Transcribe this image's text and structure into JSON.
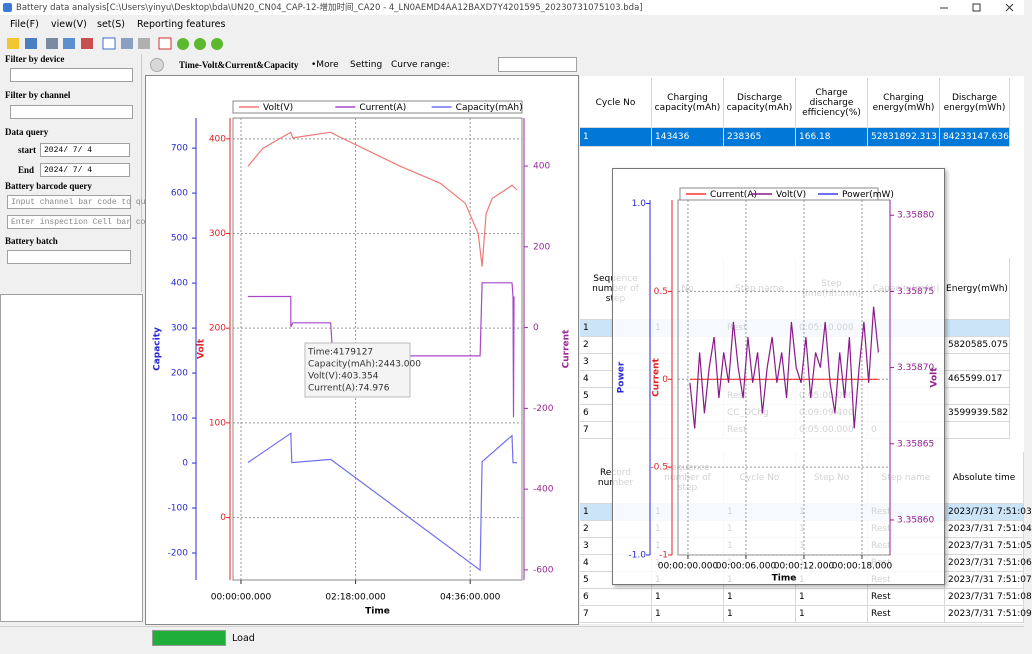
{
  "window": {
    "title": "Battery data analysis[C:\\Users\\yinyu\\Desktop\\bda\\UN20_CN04_CAP-12-增加时间_CA20 - 4_LN0AEMD4AA12BAXD7Y4201595_20230731075103.bda]"
  },
  "menu": [
    "File(F)",
    "view(V)",
    "set(S)",
    "Reporting features"
  ],
  "sidebar": {
    "device_label": "Filter by device",
    "channel_label": "Filter by channel",
    "query_label": "Data query",
    "start_label": "start",
    "start_date": "2024/ 7/ 4",
    "end_label": "End",
    "end_date": "2024/ 7/ 4",
    "barcode_label": "Battery barcode query",
    "channel_placeholder": "Input channel bar code to qu",
    "cell_placeholder": "Enter inspection Cell bar co",
    "batch_label": "Battery batch"
  },
  "chart_toolbar": {
    "view": "Time-Volt&Current&Capacity",
    "more": "•More",
    "setting": "Setting",
    "curve_range": "Curve range:"
  },
  "main_chart": {
    "type": "line",
    "x_label": "Time",
    "xlim": [
      -576,
      20304
    ],
    "xticks": [
      {
        "value": 0,
        "label": "00:00:00.000"
      },
      {
        "value": 8280,
        "label": "02:18:00.000"
      },
      {
        "value": 16560,
        "label": "04:36:00.000"
      }
    ],
    "grid": true,
    "grid_axis": 1,
    "axes": [
      {
        "title": "Capacity",
        "color": "#2b2bd6",
        "lim": [
          -260,
          767
        ],
        "ticks": [
          -200,
          -100,
          0,
          100,
          200,
          300,
          400,
          500,
          600,
          700
        ]
      },
      {
        "title": "Volt",
        "color": "#e02424",
        "lim": [
          -66,
          422
        ],
        "ticks": [
          0,
          100,
          200,
          300,
          400
        ]
      },
      {
        "title": "Current",
        "color": "#9a2a9a",
        "lim": [
          -625,
          519
        ],
        "ticks": [
          -600,
          -400,
          -200,
          0,
          200,
          400
        ]
      }
    ],
    "series": [
      {
        "name": "Volt(V)",
        "color": "#f07878",
        "axis": 1,
        "x": [
          504,
          1584,
          3600,
          3744,
          6480,
          6840,
          11520,
          14400,
          16200,
          17136,
          17424,
          17712,
          18144,
          19080,
          19584,
          19944
        ],
        "values": [
          371,
          390,
          407,
          401,
          407,
          404,
          371,
          353,
          332,
          300,
          265,
          321,
          337,
          346,
          351,
          346
        ]
      },
      {
        "name": "Current(A)",
        "color": "#a848c8",
        "axis": 2,
        "x": [
          504,
          3600,
          3600,
          3744,
          6480,
          6624,
          17280,
          17424,
          19584,
          19656,
          19692,
          19728
        ],
        "values": [
          77,
          77,
          2,
          12,
          12,
          -70,
          -70,
          111,
          111,
          77,
          -222,
          77
        ]
      },
      {
        "name": "Capacity(mAh)",
        "color": "#7070f0",
        "axis": 0,
        "x": [
          504,
          3600,
          3672,
          6480,
          17280,
          17424,
          19584,
          19656,
          19944
        ],
        "values": [
          1,
          66,
          1,
          8,
          -238,
          3,
          61,
          1,
          1
        ]
      }
    ],
    "tooltip": [
      "Time:4179127",
      "Capacity(mAh):2443.000",
      "Volt(V):403.354",
      "Current(A):74.976"
    ]
  },
  "summary_table": {
    "headers": [
      "Cycle No",
      "Charging capacity(mAh)",
      "Discharge capacity(mAh)",
      "Charge discharge efficiency(%)",
      "Charging energy(mWh)",
      "Discharge energy(mWh)"
    ],
    "rows": [
      [
        "1",
        "143436",
        "238365",
        "166.18",
        "52831892.313",
        "84233147.636"
      ]
    ]
  },
  "step_table": {
    "headers": [
      "Sequence number of step",
      "No",
      "Step name",
      "Step time(hh:mm)",
      "Capacity(mAh)",
      "Energy(mWh)"
    ],
    "rows": [
      [
        "1",
        "1",
        "Rest",
        "0:05:10.000",
        null,
        null
      ],
      [
        "2",
        null,
        null,
        null,
        null,
        "5820585.075"
      ],
      [
        "3",
        null,
        null,
        null,
        null,
        null
      ],
      [
        "4",
        null,
        null,
        null,
        null,
        "465599.017"
      ],
      [
        "5",
        null,
        "Rest",
        "0:05:00.000",
        null,
        null
      ],
      [
        "6",
        null,
        "CC_DChg",
        "0:09:09.400",
        null,
        "3599939.582"
      ],
      [
        "7",
        null,
        "Rest",
        "0:05:00.000",
        "0",
        null
      ]
    ]
  },
  "record_table": {
    "headers": [
      "Record number",
      "Sequence number of step",
      "Cycle No",
      "Step No",
      "Step name",
      "Absolute time"
    ],
    "rows": [
      [
        "1",
        "1",
        "1",
        "1",
        "Rest",
        "2023/7/31 7:51:03"
      ],
      [
        "2",
        "1",
        "1",
        "1",
        "Rest",
        "2023/7/31 7:51:04"
      ],
      [
        "3",
        "1",
        "1",
        "1",
        "Rest",
        "2023/7/31 7:51:05"
      ],
      [
        "4",
        "1",
        "1",
        "1",
        "Rest",
        "2023/7/31 7:51:06"
      ],
      [
        "5",
        "1",
        "1",
        "1",
        "Rest",
        "2023/7/31 7:51:07"
      ],
      [
        "6",
        "1",
        "1",
        "1",
        "Rest",
        "2023/7/31 7:51:08"
      ],
      [
        "7",
        "1",
        "1",
        "1",
        "Rest",
        "2023/7/31 7:51:09"
      ]
    ]
  },
  "popup_chart": {
    "type": "line",
    "x_label": "Time",
    "xlim": [
      -1.03,
      20.9
    ],
    "xticks": [
      {
        "value": 0,
        "label": "00:00:00.000"
      },
      {
        "value": 6,
        "label": "00:00:06.000"
      },
      {
        "value": 12,
        "label": "00:00:12.000"
      },
      {
        "value": 18,
        "label": "00:00:18.000"
      }
    ],
    "grid": true,
    "grid_axis": 1,
    "axes": [
      {
        "title": "Power",
        "color": "#2b2bd6",
        "lim": [
          -1,
          1.02
        ],
        "ticks": [
          {
            "value": 1,
            "label": "1.0"
          },
          {
            "value": -1,
            "label": "-1.0"
          }
        ]
      },
      {
        "title": "Current",
        "color": "#e02424",
        "lim": [
          -1,
          1.02
        ],
        "ticks": [
          0.5,
          0,
          -0.5,
          -1
        ]
      },
      {
        "title": "Volt",
        "color": "#902090",
        "lim": [
          3.358577,
          3.35881
        ],
        "ticks": [
          {
            "value": 3.3586,
            "label": "3.35860"
          },
          {
            "value": 3.35865,
            "label": "3.35865"
          },
          {
            "value": 3.3587,
            "label": "3.35870"
          },
          {
            "value": 3.35875,
            "label": "3.35875"
          },
          {
            "value": 3.3588,
            "label": "3.35880"
          }
        ]
      }
    ],
    "series": [
      {
        "name": "Current(A)",
        "color": "#ff3030",
        "axis": 1,
        "x": [
          0.2,
          19.7
        ],
        "values": [
          0,
          0
        ]
      },
      {
        "name": "Volt(V)",
        "color": "#8a1a8a",
        "axis": 2,
        "x": [
          0.2,
          0.7,
          1.2,
          1.7,
          2.2,
          2.7,
          3.2,
          3.7,
          4.2,
          4.7,
          5.2,
          5.7,
          6.2,
          6.7,
          7.2,
          7.7,
          8.2,
          8.7,
          9.2,
          9.7,
          10.2,
          10.7,
          11.2,
          11.7,
          12.2,
          12.7,
          13.2,
          13.7,
          14.2,
          14.7,
          15.2,
          15.7,
          16.2,
          16.7,
          17.2,
          17.7,
          18.2,
          18.7,
          19.2,
          19.7
        ],
        "values": [
          3.35869,
          3.35866,
          3.35871,
          3.35867,
          3.3587,
          3.35872,
          3.35868,
          3.35871,
          3.35869,
          3.35873,
          3.3587,
          3.35868,
          3.35872,
          3.35869,
          3.35871,
          3.35867,
          3.3587,
          3.35872,
          3.35869,
          3.35871,
          3.35868,
          3.35873,
          3.3587,
          3.35869,
          3.35872,
          3.35868,
          3.35871,
          3.3587,
          3.35873,
          3.35869,
          3.35867,
          3.35871,
          3.35868,
          3.35872,
          3.35866,
          3.3587,
          3.35873,
          3.35869,
          3.35874,
          3.35871
        ]
      },
      {
        "name": "Power(mW)",
        "color": "#4040ff",
        "axis": 0,
        "x": [],
        "values": []
      }
    ]
  },
  "status": {
    "load": "Load"
  }
}
